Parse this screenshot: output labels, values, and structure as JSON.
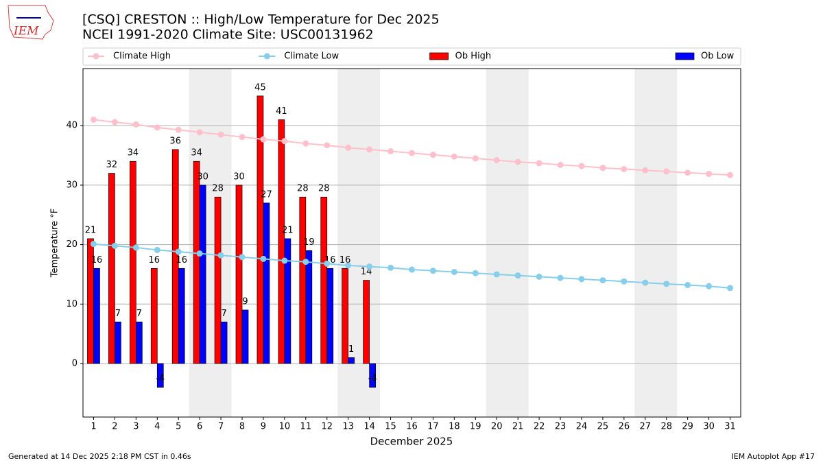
{
  "chart_data": {
    "type": "bar",
    "title": "[CSQ] CRESTON :: High/Low Temperature for Dec 2025",
    "subtitle": "NCEI 1991-2020 Climate Site: USC00131962",
    "xlabel": "December 2025",
    "ylabel": "Temperature °F",
    "footer_left": "Generated at 14 Dec 2025 2:18 PM CST in 0.46s",
    "footer_right": "IEM Autoplot App #17",
    "logo": "IEM",
    "x": [
      1,
      2,
      3,
      4,
      5,
      6,
      7,
      8,
      9,
      10,
      11,
      12,
      13,
      14,
      15,
      16,
      17,
      18,
      19,
      20,
      21,
      22,
      23,
      24,
      25,
      26,
      27,
      28,
      29,
      30,
      31
    ],
    "xlim": [
      0.5,
      31.5
    ],
    "xticks": [
      1,
      2,
      3,
      4,
      5,
      6,
      7,
      8,
      9,
      10,
      11,
      12,
      13,
      14,
      15,
      16,
      17,
      18,
      19,
      20,
      21,
      22,
      23,
      24,
      25,
      26,
      27,
      28,
      29,
      30,
      31
    ],
    "ylim": [
      -9,
      49.6
    ],
    "yticks": [
      0,
      10,
      20,
      30,
      40
    ],
    "grid": true,
    "shaded_spans": [
      [
        5.5,
        7.5
      ],
      [
        12.5,
        14.5
      ],
      [
        19.5,
        21.5
      ],
      [
        26.5,
        28.5
      ]
    ],
    "shade_color": "#eeeeee",
    "series": [
      {
        "name": "Climate High",
        "mark": "line",
        "color": "#ffc0cb",
        "values": [
          41.0,
          40.6,
          40.2,
          39.7,
          39.3,
          38.9,
          38.5,
          38.1,
          37.7,
          37.4,
          37.0,
          36.7,
          36.3,
          36.0,
          35.7,
          35.4,
          35.1,
          34.8,
          34.5,
          34.2,
          33.9,
          33.7,
          33.4,
          33.2,
          32.9,
          32.7,
          32.5,
          32.3,
          32.1,
          31.9,
          31.7
        ]
      },
      {
        "name": "Climate Low",
        "mark": "line",
        "color": "#87ceeb",
        "values": [
          20.1,
          19.8,
          19.5,
          19.1,
          18.8,
          18.5,
          18.2,
          17.9,
          17.6,
          17.3,
          17.1,
          16.8,
          16.5,
          16.3,
          16.1,
          15.8,
          15.6,
          15.4,
          15.2,
          15.0,
          14.8,
          14.6,
          14.4,
          14.2,
          14.0,
          13.8,
          13.6,
          13.4,
          13.2,
          13.0,
          12.7
        ]
      },
      {
        "name": "Ob High",
        "mark": "bar",
        "color": "#ff0000",
        "values": [
          21,
          32,
          34,
          16,
          36,
          34,
          28,
          30,
          45,
          41,
          28,
          28,
          16,
          14,
          null,
          null,
          null,
          null,
          null,
          null,
          null,
          null,
          null,
          null,
          null,
          null,
          null,
          null,
          null,
          null,
          null
        ]
      },
      {
        "name": "Ob Low",
        "mark": "bar",
        "color": "#0000ff",
        "values": [
          16,
          7,
          7,
          -4,
          16,
          30,
          7,
          9,
          27,
          21,
          19,
          16,
          1,
          -4,
          null,
          null,
          null,
          null,
          null,
          null,
          null,
          null,
          null,
          null,
          null,
          null,
          null,
          null,
          null,
          null,
          null
        ]
      }
    ]
  }
}
